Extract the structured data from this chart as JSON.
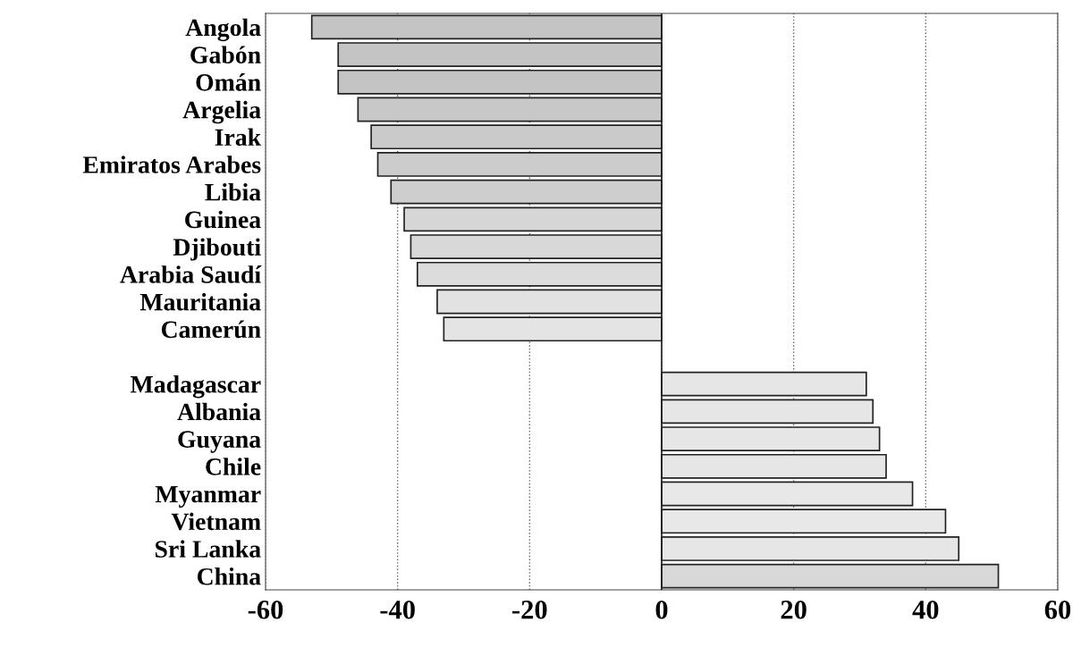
{
  "chart_data": {
    "type": "bar",
    "orientation": "horizontal",
    "categories": [
      "Angola",
      "Gabón",
      "Omán",
      "Argelia",
      "Irak",
      "Emiratos Arabes",
      "Libia",
      "Guinea",
      "Djibouti",
      "Arabia Saudí",
      "Mauritania",
      "Camerún",
      null,
      "Madagascar",
      "Albania",
      "Guyana",
      "Chile",
      "Myanmar",
      "Vietnam",
      "Sri Lanka",
      "China"
    ],
    "values": [
      -53,
      -49,
      -49,
      -46,
      -44,
      -43,
      -41,
      -39,
      -38,
      -37,
      -34,
      -33,
      null,
      31,
      32,
      33,
      34,
      38,
      43,
      45,
      51
    ],
    "colors": [
      "#c4c4c4",
      "#c4c4c4",
      "#c4c4c4",
      "#c8c8c8",
      "#cacaca",
      "#cccccc",
      "#cecece",
      "#d6d6d6",
      "#d8d8d8",
      "#dcdcdc",
      "#e2e2e2",
      "#e4e4e4",
      null,
      "#e6e6e6",
      "#e6e6e6",
      "#e6e6e6",
      "#e6e6e6",
      "#e8e8e8",
      "#e8e8e8",
      "#e6e6e6",
      "#d8d8d8"
    ],
    "xlim": [
      -60,
      60
    ],
    "xticks": [
      -60,
      -40,
      -20,
      0,
      20,
      40,
      60
    ],
    "grid": "x",
    "line_style": "dotted"
  }
}
